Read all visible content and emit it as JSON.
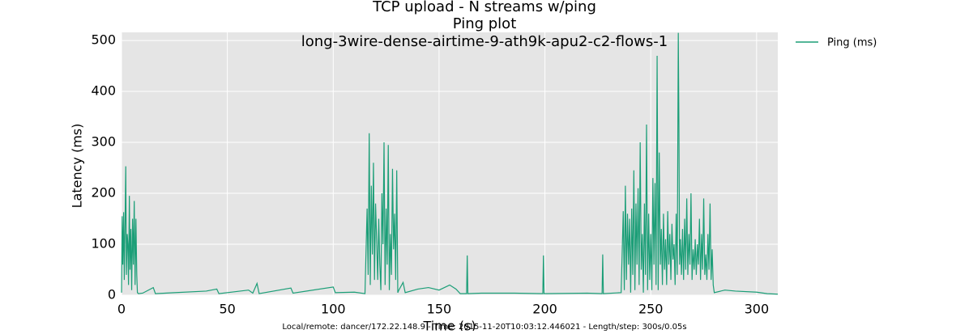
{
  "chart_data": {
    "type": "line",
    "title_lines": [
      "TCP upload - N streams w/ping",
      "Ping plot",
      "long-3wire-dense-airtime-9-ath9k-apu2-c2-flows-1"
    ],
    "xlabel": "Time (s)",
    "ylabel": "Latency (ms)",
    "footer": "Local/remote: dancer/172.22.148.9 - Time: 2015-11-20T10:03:12.446021 - Length/step: 300s/0.05s",
    "xlim": [
      0,
      310
    ],
    "ylim": [
      0,
      516
    ],
    "xticks": [
      0,
      50,
      100,
      150,
      200,
      250,
      300
    ],
    "yticks": [
      0,
      100,
      200,
      300,
      400,
      500
    ],
    "grid": true,
    "legend": "outside upper right",
    "x": [
      0,
      0.3,
      0.6,
      1,
      1.3,
      1.7,
      2,
      2.3,
      2.7,
      3,
      3.3,
      3.7,
      4,
      4.4,
      4.8,
      5.2,
      5.6,
      6,
      6.4,
      6.8,
      7.2,
      7.5,
      8,
      10,
      15,
      16,
      25,
      40,
      45,
      46,
      60,
      62,
      64,
      65,
      80,
      81,
      100,
      101,
      110,
      115,
      116,
      116.5,
      117,
      117.5,
      118,
      118.5,
      119,
      119.5,
      120,
      120.5,
      121,
      121.5,
      122,
      122.5,
      123,
      123.5,
      124,
      124.5,
      125,
      125.5,
      126,
      126.5,
      127,
      127.5,
      128,
      128.5,
      129,
      129.5,
      130,
      130.5,
      131,
      133,
      134,
      140,
      145,
      150,
      155,
      158,
      160,
      163,
      163.3,
      163.6,
      170,
      185,
      199,
      199.3,
      199.6,
      220,
      227,
      227.3,
      227.6,
      236,
      237,
      237.5,
      238,
      238.5,
      239,
      239.5,
      240,
      240.5,
      241,
      241.5,
      242,
      242.5,
      243,
      243.5,
      244,
      244.5,
      245,
      245.5,
      246,
      246.5,
      247,
      247.5,
      248,
      248.5,
      249,
      249.5,
      250,
      250.5,
      251,
      251.5,
      252,
      252.5,
      253,
      253.5,
      254,
      254.5,
      255,
      255.5,
      256,
      256.5,
      257,
      257.5,
      258,
      258.5,
      259,
      259.5,
      260,
      260.5,
      261,
      261.5,
      262,
      262.5,
      263,
      263.3,
      263.6,
      264,
      264.5,
      265,
      265.5,
      266,
      266.5,
      267,
      267.5,
      268,
      268.5,
      269,
      269.5,
      270,
      270.5,
      271,
      271.5,
      272,
      272.5,
      273,
      273.5,
      274,
      274.5,
      275,
      275.5,
      276,
      276.5,
      277,
      277.5,
      278,
      278.5,
      279,
      279.5,
      280,
      285,
      290,
      300,
      305,
      310
    ],
    "series": [
      {
        "name": "Ping (ms)",
        "color": "#1b9e77",
        "values": [
          5,
          155,
          60,
          163,
          30,
          150,
          253,
          40,
          120,
          100,
          20,
          195,
          50,
          130,
          10,
          150,
          60,
          185,
          20,
          150,
          40,
          5,
          3,
          4,
          15,
          3,
          5,
          8,
          12,
          3,
          10,
          4,
          23,
          3,
          14,
          4,
          16,
          5,
          6,
          3,
          170,
          40,
          318,
          20,
          215,
          80,
          260,
          30,
          180,
          110,
          30,
          150,
          60,
          10,
          200,
          100,
          300,
          20,
          170,
          60,
          295,
          10,
          120,
          40,
          248,
          90,
          160,
          30,
          245,
          5,
          10,
          25,
          5,
          12,
          15,
          10,
          20,
          12,
          3,
          3,
          78,
          3,
          4,
          4,
          3,
          78,
          3,
          4,
          3,
          80,
          3,
          5,
          165,
          10,
          215,
          30,
          160,
          60,
          150,
          5,
          170,
          40,
          245,
          10,
          180,
          60,
          210,
          20,
          300,
          50,
          120,
          5,
          180,
          40,
          335,
          10,
          160,
          30,
          120,
          10,
          230,
          60,
          220,
          20,
          470,
          10,
          280,
          60,
          130,
          20,
          160,
          50,
          110,
          20,
          165,
          60,
          120,
          30,
          140,
          70,
          100,
          20,
          160,
          40,
          515,
          330,
          60,
          110,
          40,
          130,
          30,
          150,
          50,
          190,
          40,
          120,
          60,
          200,
          30,
          90,
          50,
          110,
          40,
          100,
          60,
          150,
          30,
          120,
          50,
          190,
          40,
          80,
          30,
          120,
          50,
          180,
          30,
          90,
          20,
          5,
          10,
          8,
          6,
          3,
          2
        ]
      }
    ]
  }
}
